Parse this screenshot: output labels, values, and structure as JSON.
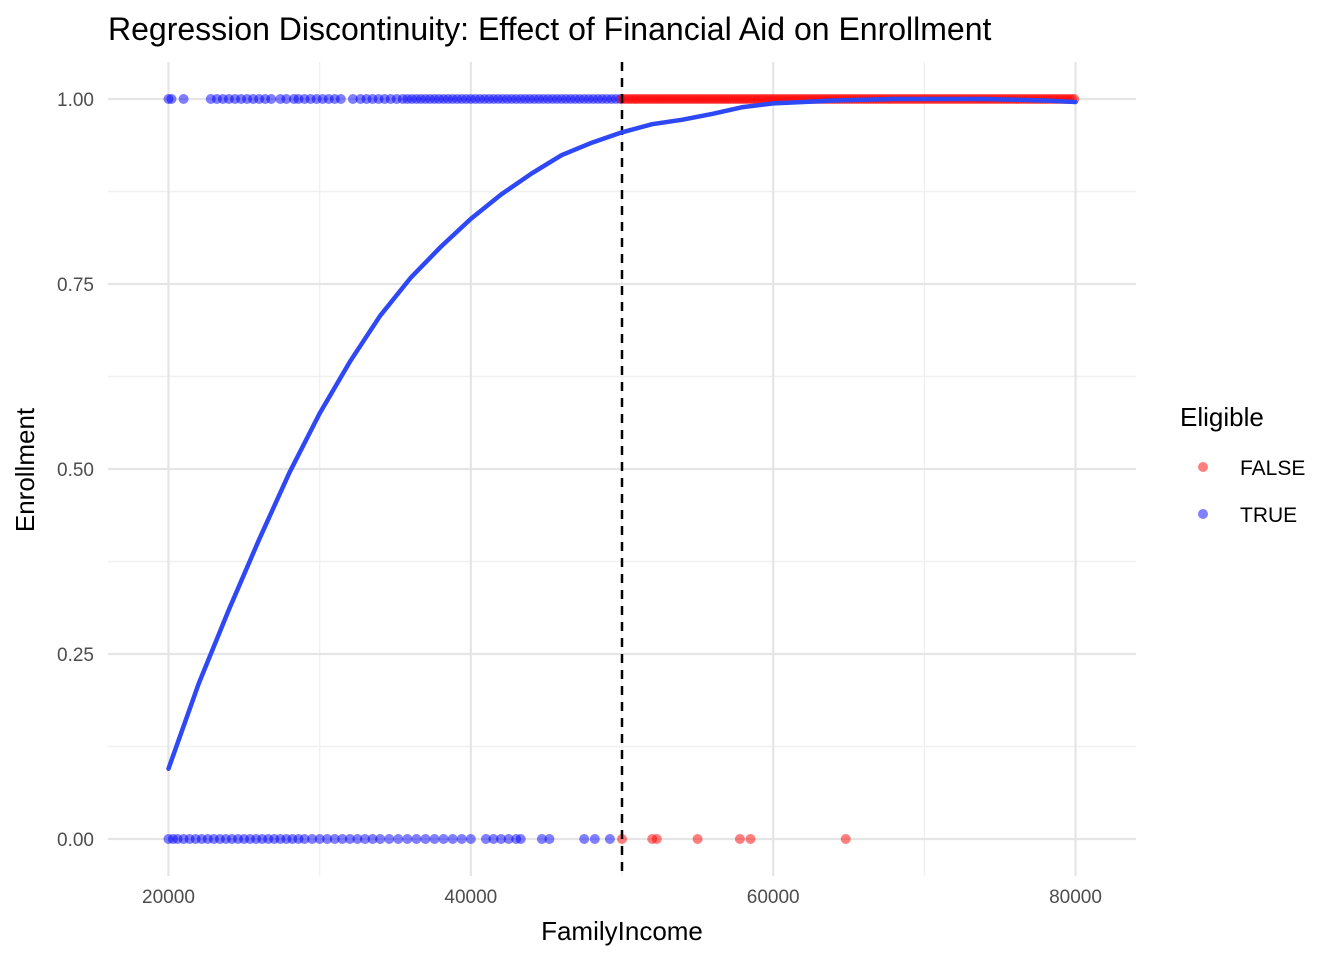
{
  "chart_data": {
    "type": "scatter",
    "title": "Regression Discontinuity: Effect of Financial Aid on Enrollment",
    "xlabel": "FamilyIncome",
    "ylabel": "Enrollment",
    "xlim": [
      16000,
      84000
    ],
    "ylim": [
      -0.05,
      1.05
    ],
    "x_ticks": [
      20000,
      40000,
      60000,
      80000
    ],
    "x_tick_labels": [
      "20000",
      "40000",
      "60000",
      "80000"
    ],
    "y_ticks": [
      0,
      0.25,
      0.5,
      0.75,
      1
    ],
    "y_tick_labels": [
      "0.00",
      "0.25",
      "0.50",
      "0.75",
      "1.00"
    ],
    "grid": true,
    "cutoff": 50000,
    "legend": {
      "title": "Eligible",
      "placement": "right",
      "entries": [
        {
          "label": "FALSE",
          "color": "#ff0000"
        },
        {
          "label": "TRUE",
          "color": "#0000ff"
        }
      ]
    },
    "series": [
      {
        "name": "FALSE",
        "color": "#ff0000",
        "points_y0": [
          50000,
          52000,
          52300,
          55000,
          57800,
          58500,
          64800
        ],
        "points_y1_range": [
          50000,
          80000
        ]
      },
      {
        "name": "TRUE",
        "color": "#0000ff",
        "points_y0": [
          20000,
          20300,
          20600,
          21000,
          21400,
          21800,
          22200,
          22600,
          23000,
          23400,
          23800,
          24200,
          24600,
          25000,
          25400,
          25800,
          26200,
          26600,
          27000,
          27400,
          27800,
          28200,
          28600,
          29000,
          29500,
          30000,
          30500,
          31000,
          31500,
          32000,
          32500,
          33000,
          33500,
          34000,
          34600,
          35200,
          35800,
          36400,
          37000,
          37600,
          38200,
          38800,
          39400,
          40000,
          41000,
          41500,
          42000,
          42500,
          43000,
          43300,
          44700,
          45200,
          47500,
          48200,
          49200
        ],
        "points_y1": [
          20000,
          20200,
          21000,
          22800,
          23200,
          23600,
          24000,
          24400,
          24800,
          25200,
          25600,
          26000,
          26400,
          26800,
          27400,
          27800,
          28300,
          28600,
          29000,
          29400,
          29800,
          30200,
          30600,
          31000,
          31400,
          32200,
          32700,
          33100,
          33500,
          33900,
          34300,
          34700,
          35100,
          35500,
          35800,
          36100,
          36400,
          36700,
          37000,
          37300,
          37600,
          37900,
          38200,
          38500,
          38800,
          39100,
          39400,
          39700,
          40000,
          40300,
          40600,
          40900,
          41200,
          41500,
          41800,
          42100,
          42400,
          42700,
          43000,
          43300,
          43600,
          43900,
          44200,
          44500,
          44800,
          45100,
          45400,
          45700,
          46000,
          46300,
          46600,
          46900,
          47200,
          47500,
          47800,
          48100,
          48400,
          48700,
          49000,
          49300,
          49600,
          49900
        ]
      }
    ],
    "smooth_line": {
      "color": "#2e48f5",
      "x": [
        20000,
        22000,
        24000,
        26000,
        28000,
        30000,
        32000,
        34000,
        36000,
        38000,
        40000,
        42000,
        44000,
        46000,
        48000,
        50000,
        52000,
        54000,
        56000,
        58000,
        60000,
        62000,
        64000,
        66000,
        68000,
        70000,
        72000,
        74000,
        76000,
        78000,
        80000
      ],
      "y": [
        0.095,
        0.21,
        0.31,
        0.405,
        0.495,
        0.575,
        0.645,
        0.707,
        0.758,
        0.8,
        0.838,
        0.871,
        0.899,
        0.924,
        0.941,
        0.955,
        0.966,
        0.972,
        0.98,
        0.989,
        0.994,
        0.996,
        0.998,
        0.999,
        1.0,
        1.0,
        1.0,
        1.0,
        0.999,
        0.998,
        0.996
      ]
    }
  }
}
